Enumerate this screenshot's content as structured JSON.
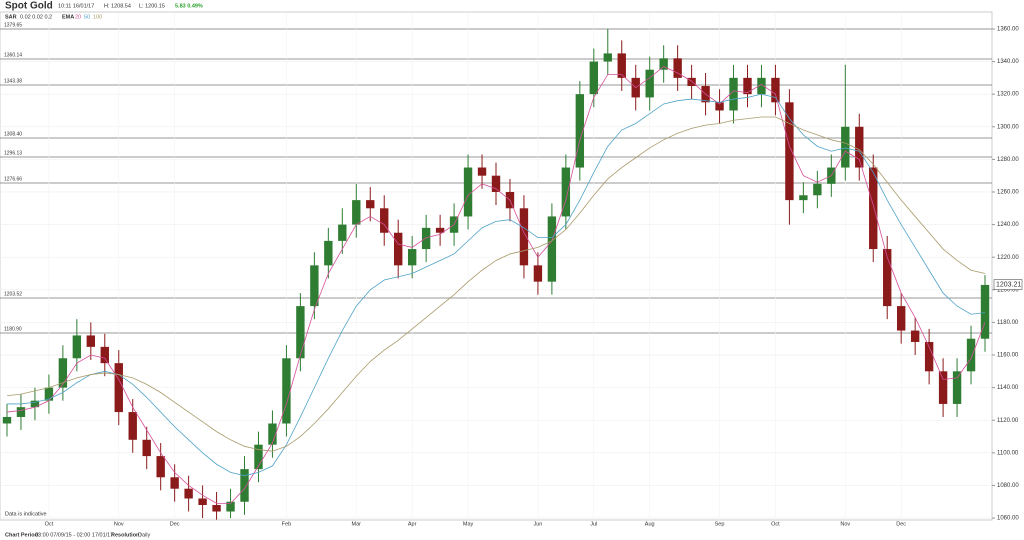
{
  "header": {
    "symbol": "Spot Gold",
    "time": "10:11 16/01/17",
    "high": "H: 1208.54",
    "low": "L: 1200.15",
    "change": "5.83 0.49%",
    "sar_label": "SAR",
    "sar_params": "0.02 0.02 0.2",
    "ema_label": "EMA"
  },
  "footer": {
    "period_label": "Chart Period:",
    "period": "03:00 07/09/15 - 02:00 17/01/17",
    "resolution_label": "Resolution:",
    "resolution": "Daily",
    "note": "Data is indicative"
  },
  "levels": [
    "1379.65",
    "1360.14",
    "1343.38",
    "1308.40",
    "1296.13",
    "1276.66",
    "1203.52",
    "1180.90"
  ],
  "chart_data": {
    "type": "candlestick",
    "up_color": "#2e7d32",
    "down_color": "#8b1a1a",
    "grid": true,
    "last_price": {
      "value": 1203.21,
      "label": "1203.21"
    },
    "categories": [
      null,
      null,
      null,
      "Oct",
      null,
      null,
      null,
      null,
      "Nov",
      null,
      null,
      null,
      "Dec",
      null,
      null,
      null,
      null,
      null,
      null,
      null,
      "Feb",
      null,
      null,
      null,
      null,
      "Mar",
      null,
      null,
      null,
      "Apr",
      null,
      null,
      null,
      "May",
      null,
      null,
      null,
      null,
      "Jun",
      null,
      null,
      null,
      "Jul",
      null,
      null,
      null,
      "Aug",
      null,
      null,
      null,
      null,
      "Sep",
      null,
      null,
      null,
      "Oct",
      null,
      null,
      null,
      null,
      "Nov",
      null,
      null,
      null,
      "Dec",
      null,
      null,
      null,
      null,
      null,
      null
    ],
    "open": [
      1118,
      1122,
      1128,
      1132,
      1140,
      1158,
      1172,
      1165,
      1155,
      1125,
      1108,
      1098,
      1085,
      1078,
      1072,
      1068,
      1064,
      1070,
      1090,
      1105,
      1118,
      1158,
      1190,
      1215,
      1230,
      1240,
      1255,
      1250,
      1235,
      1215,
      1225,
      1238,
      1235,
      1245,
      1275,
      1270,
      1260,
      1250,
      1215,
      1205,
      1245,
      1275,
      1320,
      1340,
      1345,
      1330,
      1318,
      1335,
      1342,
      1330,
      1325,
      1315,
      1310,
      1330,
      1320,
      1330,
      1315,
      1255,
      1258,
      1265,
      1275,
      1300,
      1275,
      1225,
      1190,
      1175,
      1168,
      1150,
      1130,
      1150,
      1170
    ],
    "high": [
      1130,
      1136,
      1140,
      1148,
      1166,
      1182,
      1180,
      1173,
      1163,
      1133,
      1116,
      1106,
      1093,
      1086,
      1080,
      1076,
      1078,
      1098,
      1113,
      1126,
      1166,
      1198,
      1223,
      1238,
      1250,
      1265,
      1263,
      1258,
      1243,
      1233,
      1246,
      1246,
      1253,
      1283,
      1283,
      1278,
      1268,
      1258,
      1223,
      1253,
      1283,
      1328,
      1348,
      1360,
      1353,
      1338,
      1343,
      1350,
      1350,
      1338,
      1333,
      1323,
      1338,
      1338,
      1338,
      1338,
      1323,
      1266,
      1273,
      1283,
      1338,
      1308,
      1283,
      1233,
      1198,
      1183,
      1176,
      1158,
      1158,
      1178,
      1209
    ],
    "low": [
      1110,
      1114,
      1120,
      1124,
      1132,
      1150,
      1157,
      1147,
      1117,
      1100,
      1090,
      1077,
      1070,
      1064,
      1060,
      1059,
      1060,
      1062,
      1082,
      1097,
      1110,
      1150,
      1182,
      1207,
      1222,
      1232,
      1242,
      1227,
      1207,
      1207,
      1217,
      1227,
      1227,
      1237,
      1262,
      1252,
      1242,
      1207,
      1197,
      1197,
      1237,
      1267,
      1312,
      1332,
      1322,
      1310,
      1310,
      1327,
      1322,
      1317,
      1307,
      1302,
      1302,
      1312,
      1312,
      1307,
      1240,
      1247,
      1250,
      1257,
      1267,
      1267,
      1217,
      1182,
      1167,
      1160,
      1142,
      1122,
      1122,
      1142,
      1162
    ],
    "close": [
      1122,
      1128,
      1132,
      1140,
      1158,
      1172,
      1165,
      1155,
      1125,
      1108,
      1098,
      1085,
      1078,
      1072,
      1068,
      1064,
      1070,
      1090,
      1105,
      1118,
      1158,
      1190,
      1215,
      1230,
      1240,
      1255,
      1250,
      1235,
      1215,
      1225,
      1238,
      1235,
      1245,
      1275,
      1270,
      1260,
      1250,
      1215,
      1205,
      1245,
      1275,
      1320,
      1340,
      1345,
      1330,
      1318,
      1335,
      1342,
      1330,
      1325,
      1315,
      1310,
      1330,
      1320,
      1330,
      1315,
      1255,
      1258,
      1265,
      1275,
      1300,
      1275,
      1225,
      1190,
      1175,
      1168,
      1150,
      1130,
      1150,
      1170,
      1203
    ],
    "series": [
      {
        "name": "20",
        "color": "#d64f9a",
        "values": [
          1125,
          1126,
          1128,
          1132,
          1142,
          1155,
          1160,
          1158,
          1145,
          1128,
          1114,
          1100,
          1088,
          1080,
          1074,
          1069,
          1069,
          1078,
          1092,
          1106,
          1130,
          1160,
          1188,
          1210,
          1225,
          1240,
          1245,
          1240,
          1228,
          1226,
          1232,
          1234,
          1240,
          1258,
          1265,
          1262,
          1255,
          1235,
          1220,
          1230,
          1255,
          1292,
          1318,
          1332,
          1332,
          1324,
          1330,
          1337,
          1333,
          1328,
          1320,
          1314,
          1322,
          1321,
          1326,
          1320,
          1288,
          1270,
          1266,
          1270,
          1285,
          1280,
          1252,
          1220,
          1198,
          1183,
          1165,
          1145,
          1146,
          1158,
          1180
        ]
      },
      {
        "name": "50",
        "color": "#4fa3c7",
        "values": [
          1130,
          1130,
          1131,
          1133,
          1137,
          1143,
          1148,
          1150,
          1148,
          1142,
          1134,
          1125,
          1116,
          1108,
          1100,
          1093,
          1088,
          1086,
          1088,
          1092,
          1105,
          1122,
          1140,
          1158,
          1175,
          1190,
          1200,
          1206,
          1208,
          1210,
          1214,
          1218,
          1222,
          1230,
          1238,
          1242,
          1243,
          1238,
          1232,
          1232,
          1240,
          1255,
          1272,
          1288,
          1298,
          1302,
          1308,
          1314,
          1316,
          1317,
          1316,
          1315,
          1317,
          1318,
          1320,
          1318,
          1305,
          1295,
          1288,
          1285,
          1287,
          1285,
          1272,
          1255,
          1240,
          1226,
          1212,
          1198,
          1190,
          1185,
          1186
        ]
      },
      {
        "name": "100",
        "color": "#a89a6a",
        "values": [
          1135,
          1136,
          1138,
          1140,
          1143,
          1146,
          1148,
          1149,
          1148,
          1146,
          1142,
          1137,
          1131,
          1125,
          1119,
          1113,
          1108,
          1104,
          1102,
          1101,
          1104,
          1110,
          1118,
          1127,
          1137,
          1147,
          1156,
          1163,
          1169,
          1176,
          1183,
          1190,
          1197,
          1205,
          1212,
          1218,
          1222,
          1224,
          1226,
          1230,
          1237,
          1247,
          1258,
          1268,
          1275,
          1281,
          1287,
          1292,
          1296,
          1299,
          1301,
          1302,
          1304,
          1305,
          1306,
          1306,
          1302,
          1298,
          1295,
          1292,
          1290,
          1286,
          1277,
          1266,
          1255,
          1245,
          1235,
          1225,
          1218,
          1212,
          1210
        ]
      }
    ],
    "ylim": [
      1058.8,
      1370.4
    ],
    "yticks": [
      {
        "value": 1060,
        "label": "1060.00"
      },
      {
        "value": 1080,
        "label": "1080.00"
      },
      {
        "value": 1100,
        "label": "1100.00"
      },
      {
        "value": 1120,
        "label": "1120.00"
      },
      {
        "value": 1140,
        "label": "1140.00"
      },
      {
        "value": 1160,
        "label": "1160.00"
      },
      {
        "value": 1180,
        "label": "1180.00"
      },
      {
        "value": 1200,
        "label": "1200.00"
      },
      {
        "value": 1220,
        "label": "1220.00"
      },
      {
        "value": 1240,
        "label": "1240.00"
      },
      {
        "value": 1260,
        "label": "1260.00"
      },
      {
        "value": 1280,
        "label": "1280.00"
      },
      {
        "value": 1300,
        "label": "1300.00"
      },
      {
        "value": 1320,
        "label": "1320.00"
      },
      {
        "value": 1340,
        "label": "1340.00"
      },
      {
        "value": 1360,
        "label": "1360.00"
      }
    ]
  }
}
